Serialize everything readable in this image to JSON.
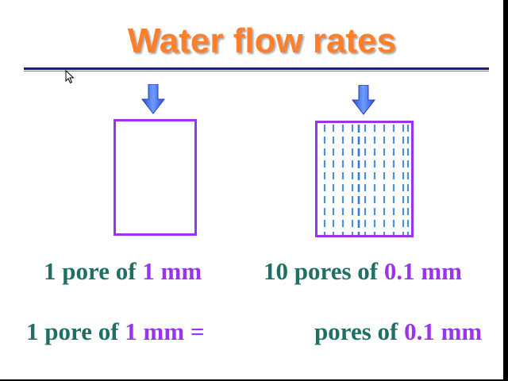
{
  "slide": {
    "title": "Water flow rates",
    "left_label": {
      "prefix": "1 pore of ",
      "size": "1 mm"
    },
    "right_label": {
      "prefix": "10 pores of ",
      "size": "0.1 mm"
    },
    "equation": {
      "left_prefix": "1 pore of ",
      "left_size": "1 mm =",
      "right_prefix": "pores of ",
      "right_size": "0.1 mm"
    }
  },
  "colors": {
    "title": "#ff7f2a",
    "label_text": "#1f6f64",
    "highlight": "#9933ee",
    "arrow": "#3f6fff",
    "pore_lines": "#4a8fe0",
    "rule": "#1a1a8c"
  },
  "icons": [
    "down-arrow-icon",
    "mouse-cursor-icon"
  ]
}
